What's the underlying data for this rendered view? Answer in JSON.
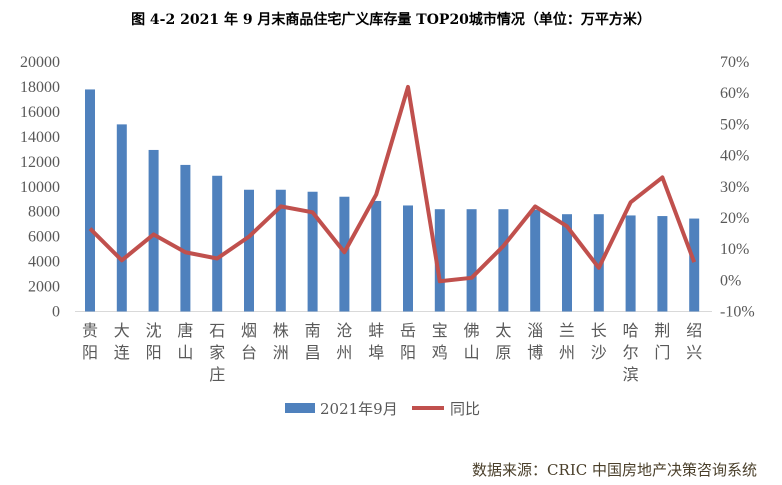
{
  "chart_data": {
    "type": "bar+line",
    "title": "图 4-2 2021 年 9 月末商品住宅广义库存量 TOP20城市情况（单位：万平方米）",
    "categories": [
      "贵阳",
      "大连",
      "沈阳",
      "唐山",
      "石家庄",
      "烟台",
      "株洲",
      "南昌",
      "沧州",
      "蚌埠",
      "岳阳",
      "宝鸡",
      "佛山",
      "太原",
      "淄博",
      "兰州",
      "长沙",
      "哈尔滨",
      "荆门",
      "绍兴"
    ],
    "series": [
      {
        "name": "2021年9月",
        "type": "bar",
        "axis": "left",
        "color": "#4F81BD",
        "values": [
          17800,
          15000,
          12950,
          11750,
          10880,
          9760,
          9760,
          9600,
          9200,
          8860,
          8500,
          8200,
          8200,
          8200,
          8150,
          7800,
          7800,
          7700,
          7650,
          7450
        ]
      },
      {
        "name": "同比",
        "type": "line",
        "axis": "right",
        "color": "#C0504D",
        "values": [
          16.6,
          6.4,
          14.7,
          9.0,
          7.0,
          14.0,
          23.7,
          21.8,
          9.0,
          27.5,
          62.0,
          -0.3,
          0.8,
          11.0,
          23.7,
          17.3,
          4.0,
          25.0,
          33.0,
          5.8
        ]
      }
    ],
    "y_left": {
      "range": [
        0,
        20000
      ],
      "ticks": [
        "0",
        "2000",
        "4000",
        "6000",
        "8000",
        "10000",
        "12000",
        "14000",
        "16000",
        "18000",
        "20000"
      ]
    },
    "y_right": {
      "range": [
        -10,
        70
      ],
      "unit": "%",
      "ticks": [
        "-10%",
        "0%",
        "10%",
        "20%",
        "30%",
        "40%",
        "50%",
        "60%",
        "70%"
      ]
    },
    "grid": false,
    "legend_position": "bottom"
  },
  "source": {
    "label": "数据来源：",
    "text": "CRIC 中国房地产决策咨询系统"
  }
}
